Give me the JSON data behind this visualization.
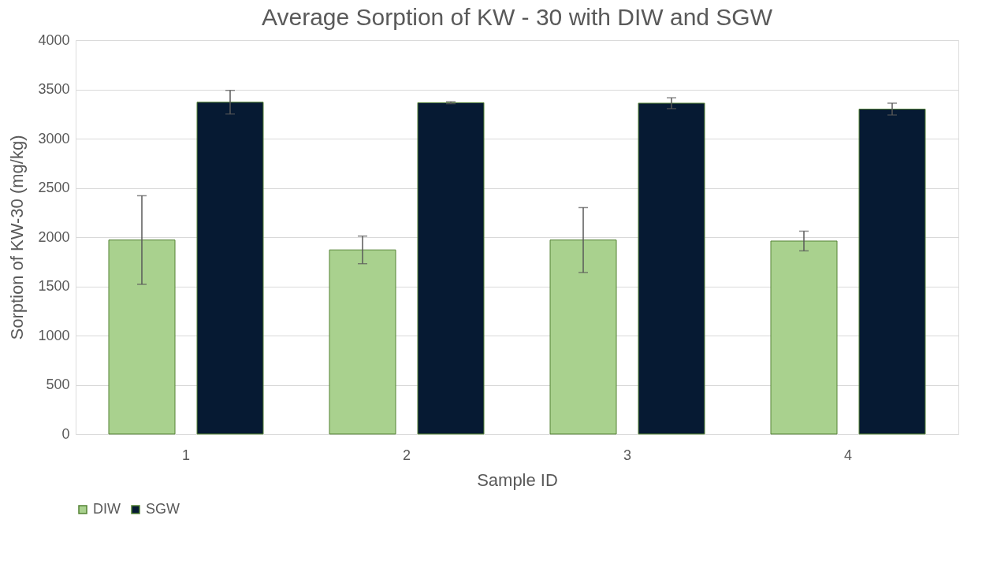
{
  "chart_data": {
    "type": "bar",
    "title": "Average Sorption of KW - 30 with DIW and SGW",
    "xlabel": "Sample ID",
    "ylabel": "Sorption  of KW-30 (mg/kg)",
    "categories": [
      "1",
      "2",
      "3",
      "4"
    ],
    "series": [
      {
        "name": "DIW",
        "color": "#a9d18e",
        "values": [
          1970,
          1870,
          1970,
          1960
        ],
        "errors": [
          450,
          140,
          330,
          100
        ]
      },
      {
        "name": "SGW",
        "color": "#061a33",
        "values": [
          3370,
          3365,
          3360,
          3300
        ],
        "errors": [
          120,
          10,
          55,
          60
        ]
      }
    ],
    "ylim": [
      0,
      4000
    ],
    "yticks": [
      0,
      500,
      1000,
      1500,
      2000,
      2500,
      3000,
      3500,
      4000
    ],
    "grid": "y",
    "legend": "bottom"
  }
}
